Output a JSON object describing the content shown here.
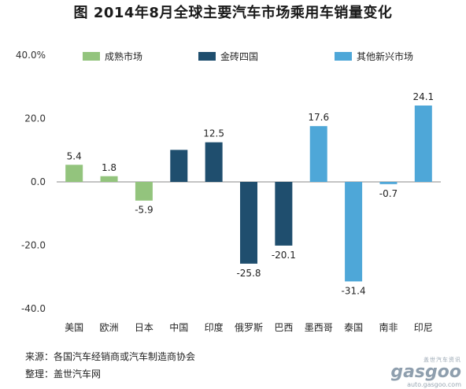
{
  "title": "图  2014年8月全球主要汽车市场乘用车销量变化",
  "footer": {
    "source": "来源：各国汽车经销商或汽车制造商协会",
    "compiled": "整理：盖世汽车网"
  },
  "watermark": {
    "cn": "盖世汽车资讯",
    "brand": "gasgoo",
    "url": "auto.gasgoo.com"
  },
  "colors": {
    "成熟市场": "#93c47d",
    "金砖四国": "#1f4e6e",
    "其他新兴市场": "#4ea7d8",
    "axis": "#888888"
  },
  "chart_data": {
    "type": "bar",
    "title": "图  2014年8月全球主要汽车市场乘用车销量变化",
    "xlabel": "",
    "ylabel": "",
    "ylim": [
      -40,
      40
    ],
    "yticks": [
      "40.0%",
      "20.0",
      "0.0",
      "-20.0",
      "-40.0"
    ],
    "ytick_values": [
      40,
      20,
      0,
      -20,
      -40
    ],
    "legend": [
      "成熟市场",
      "金砖四国",
      "其他新兴市场"
    ],
    "legend_position": "top",
    "grid": false,
    "categories": [
      "美国",
      "欧洲",
      "日本",
      "中国",
      "印度",
      "俄罗斯",
      "巴西",
      "墨西哥",
      "泰国",
      "南非",
      "印尼"
    ],
    "values": [
      5.4,
      1.8,
      -5.9,
      10.1,
      12.5,
      -25.8,
      -20.1,
      17.6,
      -31.4,
      -0.7,
      24.1
    ],
    "labels": [
      "5.4",
      "1.8",
      "-5.9",
      "",
      "12.5",
      "-25.8",
      "-20.1",
      "17.6",
      "-31.4",
      "-0.7",
      "24.1"
    ],
    "groups": [
      "成熟市场",
      "成熟市场",
      "成熟市场",
      "金砖四国",
      "金砖四国",
      "金砖四国",
      "金砖四国",
      "其他新兴市场",
      "其他新兴市场",
      "其他新兴市场",
      "其他新兴市场"
    ]
  }
}
